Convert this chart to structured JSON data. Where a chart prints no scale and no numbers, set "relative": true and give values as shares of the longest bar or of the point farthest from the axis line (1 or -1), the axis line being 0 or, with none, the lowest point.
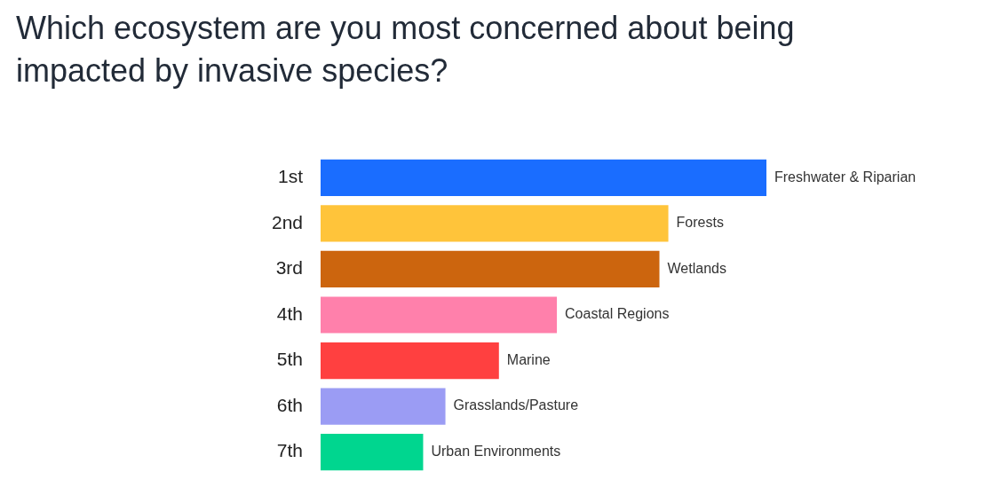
{
  "chart_data": {
    "type": "bar",
    "orientation": "horizontal",
    "relative": true,
    "title": "Which ecosystem are you most concerned about being impacted by invasive species?",
    "categories": [
      "1st",
      "2nd",
      "3rd",
      "4th",
      "5th",
      "6th",
      "7th"
    ],
    "values": [
      1,
      0.78,
      0.76,
      0.53,
      0.4,
      0.28,
      0.23
    ],
    "colors": [
      "#1a6dff",
      "#ffc43a",
      "#cc650e",
      "#ff80ab",
      "#ff4040",
      "#9b9cf4",
      "#00d68f"
    ],
    "annotations": [
      {
        "text": "Freshwater & Riparian",
        "x": 1,
        "y": "1st"
      },
      {
        "text": "Forests",
        "x": 0.78,
        "y": "2nd"
      },
      {
        "text": "Wetlands",
        "x": 0.76,
        "y": "3rd"
      },
      {
        "text": "Coastal Regions",
        "x": 0.53,
        "y": "4th"
      },
      {
        "text": "Marine",
        "x": 0.4,
        "y": "5th"
      },
      {
        "text": "Grasslands/Pasture",
        "x": 0.28,
        "y": "6th"
      },
      {
        "text": "Urban Environments",
        "x": 0.23,
        "y": "7th"
      }
    ]
  }
}
